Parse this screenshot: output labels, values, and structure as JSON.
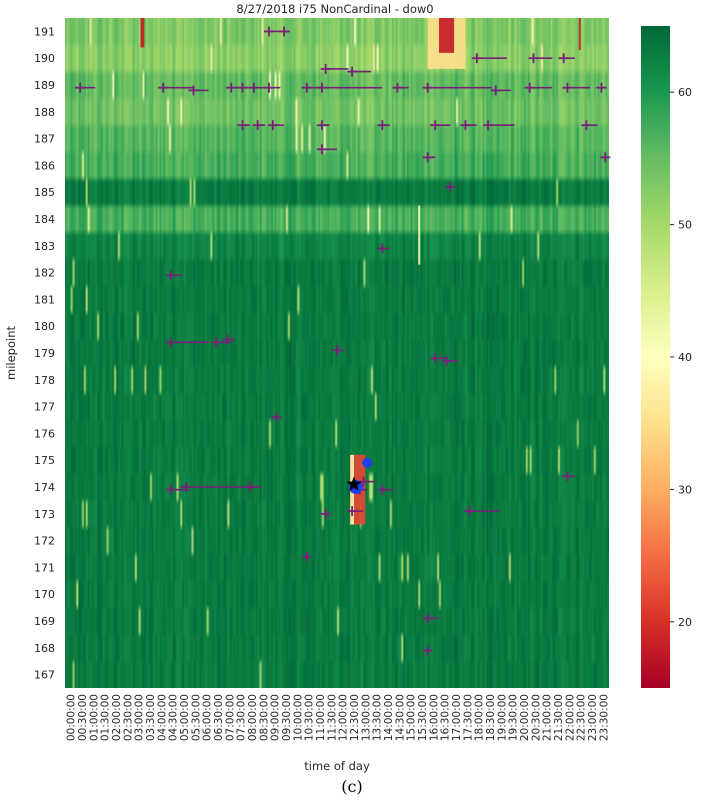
{
  "caption": "(c)",
  "chart_data": {
    "type": "heatmap",
    "title": "8/27/2018 i75 NonCardinal - dow0",
    "xlabel": "time of day",
    "ylabel": "milepoint",
    "x_ticks": [
      "00:00:00",
      "00:30:00",
      "01:00:00",
      "01:30:00",
      "02:00:00",
      "02:30:00",
      "03:00:00",
      "03:30:00",
      "04:00:00",
      "04:30:00",
      "05:00:00",
      "05:30:00",
      "06:00:00",
      "06:30:00",
      "07:00:00",
      "07:30:00",
      "08:00:00",
      "08:30:00",
      "09:00:00",
      "09:30:00",
      "10:00:00",
      "10:30:00",
      "11:00:00",
      "11:30:00",
      "12:00:00",
      "12:30:00",
      "13:00:00",
      "13:30:00",
      "14:00:00",
      "14:30:00",
      "15:00:00",
      "15:30:00",
      "16:00:00",
      "16:30:00",
      "17:00:00",
      "17:30:00",
      "18:00:00",
      "18:30:00",
      "19:00:00",
      "19:30:00",
      "20:00:00",
      "20:30:00",
      "21:00:00",
      "21:30:00",
      "22:00:00",
      "22:30:00",
      "23:00:00",
      "23:30:00"
    ],
    "y_ticks": [
      191,
      190,
      189,
      188,
      187,
      186,
      185,
      184,
      183,
      182,
      181,
      180,
      179,
      178,
      177,
      176,
      175,
      174,
      173,
      172,
      171,
      170,
      169,
      168,
      167
    ],
    "colorbar": {
      "min": 15,
      "max": 65,
      "ticks": [
        20,
        30,
        40,
        50,
        60
      ],
      "colormap": "RdYlGn"
    },
    "milepoint_base_speeds": {
      "191": 53,
      "190": 52,
      "189": 55,
      "188": 54,
      "187": 56,
      "186": 57,
      "185": 63,
      "184": 57,
      "183": 62,
      "182": 63,
      "181": 63,
      "180": 63,
      "179": 63,
      "178": 63,
      "177": 63,
      "176": 63,
      "175": 63,
      "174": 63,
      "173": 63,
      "172": 63,
      "171": 63,
      "170": 63,
      "169": 63,
      "168": 63,
      "167": 63
    },
    "congestion_regions": [
      {
        "t_start": "16:00:00",
        "t_end": "17:40:00",
        "mp_top": 191.5,
        "mp_bottom": 189.6,
        "speed": 35
      },
      {
        "t_start": "16:30:00",
        "t_end": "17:10:00",
        "mp_top": 191.5,
        "mp_bottom": 190.2,
        "speed": 18
      },
      {
        "t_start": "03:20:00",
        "t_end": "03:30:00",
        "mp_top": 191.5,
        "mp_bottom": 190.4,
        "speed": 18
      },
      {
        "t_start": "22:40:00",
        "t_end": "22:45:00",
        "mp_top": 191.5,
        "mp_bottom": 190.3,
        "speed": 18
      },
      {
        "t_start": "12:35:00",
        "t_end": "13:15:00",
        "mp_top": 175.2,
        "mp_bottom": 172.6,
        "speed": 22
      },
      {
        "t_start": "12:35:00",
        "t_end": "12:45:00",
        "mp_top": 175.2,
        "mp_bottom": 172.6,
        "speed": 38
      },
      {
        "t_start": "15:35:00",
        "t_end": "15:40:00",
        "mp_top": 184.5,
        "mp_bottom": 182.3,
        "speed": 42
      }
    ],
    "incidents": [
      {
        "t": "09:00:00",
        "mp": 191.0,
        "len": "00:40:00"
      },
      {
        "t": "09:40:00",
        "mp": 191.0,
        "len": "00:15:00"
      },
      {
        "t": "18:10:00",
        "mp": 190.0,
        "len": "01:20:00"
      },
      {
        "t": "20:40:00",
        "mp": 190.0,
        "len": "00:50:00"
      },
      {
        "t": "22:00:00",
        "mp": 190.0,
        "len": "00:30:00"
      },
      {
        "t": "11:30:00",
        "mp": 189.6,
        "len": "01:00:00"
      },
      {
        "t": "12:40:00",
        "mp": 189.5,
        "len": "00:50:00"
      },
      {
        "t": "00:40:00",
        "mp": 188.9,
        "len": "00:40:00"
      },
      {
        "t": "04:20:00",
        "mp": 188.9,
        "len": "01:20:00"
      },
      {
        "t": "05:40:00",
        "mp": 188.8,
        "len": "00:40:00"
      },
      {
        "t": "07:20:00",
        "mp": 188.9,
        "len": "00:20:00"
      },
      {
        "t": "07:50:00",
        "mp": 188.9,
        "len": "00:30:00"
      },
      {
        "t": "08:20:00",
        "mp": 188.9,
        "len": "00:30:00"
      },
      {
        "t": "09:00:00",
        "mp": 188.9,
        "len": "00:30:00"
      },
      {
        "t": "10:40:00",
        "mp": 188.9,
        "len": "00:40:00"
      },
      {
        "t": "11:20:00",
        "mp": 188.9,
        "len": "02:40:00"
      },
      {
        "t": "14:40:00",
        "mp": 188.9,
        "len": "00:30:00"
      },
      {
        "t": "16:00:00",
        "mp": 188.9,
        "len": "02:50:00"
      },
      {
        "t": "19:00:00",
        "mp": 188.8,
        "len": "00:40:00"
      },
      {
        "t": "20:30:00",
        "mp": 188.9,
        "len": "01:00:00"
      },
      {
        "t": "22:10:00",
        "mp": 188.9,
        "len": "01:00:00"
      },
      {
        "t": "23:40:00",
        "mp": 188.9,
        "len": "00:10:00"
      },
      {
        "t": "07:50:00",
        "mp": 187.5,
        "len": "00:20:00"
      },
      {
        "t": "08:30:00",
        "mp": 187.5,
        "len": "00:20:00"
      },
      {
        "t": "09:10:00",
        "mp": 187.5,
        "len": "00:30:00"
      },
      {
        "t": "11:20:00",
        "mp": 187.5,
        "len": "00:20:00"
      },
      {
        "t": "14:00:00",
        "mp": 187.5,
        "len": "00:20:00"
      },
      {
        "t": "16:20:00",
        "mp": 187.5,
        "len": "00:40:00"
      },
      {
        "t": "17:40:00",
        "mp": 187.5,
        "len": "00:30:00"
      },
      {
        "t": "18:40:00",
        "mp": 187.5,
        "len": "01:10:00"
      },
      {
        "t": "23:00:00",
        "mp": 187.5,
        "len": "00:30:00"
      },
      {
        "t": "11:20:00",
        "mp": 186.6,
        "len": "00:40:00"
      },
      {
        "t": "16:00:00",
        "mp": 186.3,
        "len": "00:20:00"
      },
      {
        "t": "23:50:00",
        "mp": 186.3,
        "len": "00:10:00"
      },
      {
        "t": "17:00:00",
        "mp": 185.2,
        "len": "00:10:00"
      },
      {
        "t": "14:00:00",
        "mp": 182.9,
        "len": "00:20:00"
      },
      {
        "t": "04:40:00",
        "mp": 181.9,
        "len": "00:30:00"
      },
      {
        "t": "04:40:00",
        "mp": 179.4,
        "len": "01:40:00"
      },
      {
        "t": "06:40:00",
        "mp": 179.4,
        "len": "00:40:00"
      },
      {
        "t": "07:10:00",
        "mp": 179.5,
        "len": "00:20:00"
      },
      {
        "t": "12:00:00",
        "mp": 179.1,
        "len": "00:20:00"
      },
      {
        "t": "16:20:00",
        "mp": 178.8,
        "len": "00:30:00"
      },
      {
        "t": "16:50:00",
        "mp": 178.7,
        "len": "00:30:00"
      },
      {
        "t": "09:20:00",
        "mp": 176.6,
        "len": "00:10:00"
      },
      {
        "t": "13:10:00",
        "mp": 174.2,
        "len": "00:30:00"
      },
      {
        "t": "13:00:00",
        "mp": 173.9,
        "len": "00:20:00"
      },
      {
        "t": "14:00:00",
        "mp": 173.9,
        "len": "00:30:00"
      },
      {
        "t": "04:40:00",
        "mp": 173.9,
        "len": "00:50:00"
      },
      {
        "t": "05:20:00",
        "mp": 174.0,
        "len": "02:50:00"
      },
      {
        "t": "08:10:00",
        "mp": 174.0,
        "len": "00:30:00"
      },
      {
        "t": "11:30:00",
        "mp": 173.0,
        "len": "00:10:00"
      },
      {
        "t": "12:40:00",
        "mp": 173.1,
        "len": "00:30:00"
      },
      {
        "t": "17:50:00",
        "mp": 173.1,
        "len": "01:20:00"
      },
      {
        "t": "22:10:00",
        "mp": 174.4,
        "len": "00:20:00"
      },
      {
        "t": "10:40:00",
        "mp": 171.4,
        "len": "00:10:00"
      },
      {
        "t": "16:00:00",
        "mp": 169.1,
        "len": "00:30:00"
      },
      {
        "t": "16:00:00",
        "mp": 167.9,
        "len": "00:10:00"
      }
    ],
    "markers": [
      {
        "type": "blue-circle",
        "t": "13:20:00",
        "mp": 174.9
      },
      {
        "type": "blue-circle",
        "t": "12:50:00",
        "mp": 174.0
      },
      {
        "type": "black-star",
        "t": "12:45:00",
        "mp": 174.1
      }
    ]
  }
}
